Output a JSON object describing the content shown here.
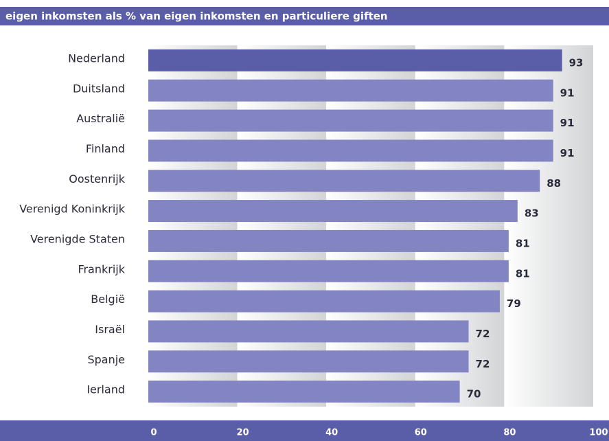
{
  "chart_data": {
    "type": "bar",
    "orientation": "horizontal",
    "title": "eigen inkomsten als % van eigen inkomsten en particuliere giften",
    "categories": [
      "Nederland",
      "Duitsland",
      "Australië",
      "Finland",
      "Oostenrijk",
      "Verenigd Koninkrijk",
      "Verenigde Staten",
      "Frankrijk",
      "België",
      "Israël",
      "Spanje",
      "Ierland"
    ],
    "values": [
      93,
      91,
      91,
      91,
      88,
      83,
      81,
      81,
      79,
      72,
      72,
      70
    ],
    "colors": [
      "#5a5ea8",
      "#8385c2",
      "#8385c2",
      "#8385c2",
      "#8385c2",
      "#8385c2",
      "#8385c2",
      "#8385c2",
      "#8385c2",
      "#8385c2",
      "#8385c2",
      "#8385c2"
    ],
    "xlim": [
      0,
      100
    ],
    "xticks": [
      0,
      20,
      40,
      60,
      80,
      100
    ],
    "grid": true
  }
}
